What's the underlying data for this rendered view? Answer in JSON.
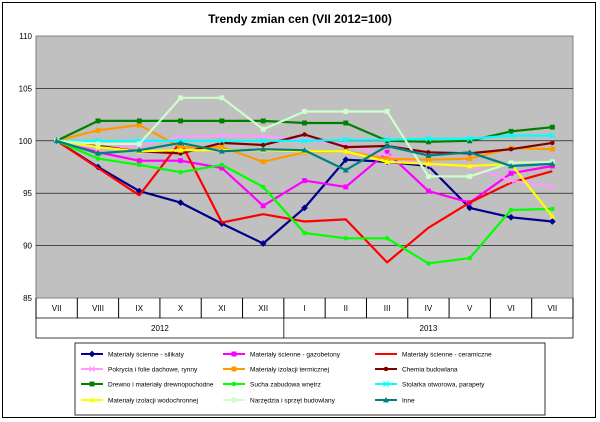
{
  "chart_data": {
    "type": "line",
    "title": "Trendy zmian cen (VII 2012=100)",
    "xlabel": "",
    "ylabel": "",
    "ylim": [
      85,
      110
    ],
    "yticks": [
      85,
      90,
      95,
      100,
      105,
      110
    ],
    "grid": true,
    "legend_position": "bottom",
    "categories": [
      "VII",
      "VIII",
      "IX",
      "X",
      "XI",
      "XII",
      "I",
      "II",
      "III",
      "IV",
      "V",
      "VI",
      "VII"
    ],
    "year_groups": [
      {
        "label": "2012",
        "span": 6
      },
      {
        "label": "2013",
        "span": 7
      }
    ],
    "series": [
      {
        "name": "Materiały ścienne - silikaty",
        "color": "#00008B",
        "marker": "diamond",
        "values": [
          100,
          97.5,
          95.2,
          94.1,
          92.1,
          90.2,
          93.6,
          98.2,
          98.0,
          97.6,
          93.6,
          92.7,
          92.3
        ]
      },
      {
        "name": "Materiały ścienne - gazobetony",
        "color": "#FF00FF",
        "marker": "square",
        "values": [
          100,
          98.9,
          98.1,
          98.1,
          97.4,
          93.8,
          96.2,
          95.6,
          98.9,
          95.2,
          94.1,
          96.9,
          97.6
        ]
      },
      {
        "name": "Materiały ścienne - ceramiczne",
        "color": "#FF0000",
        "marker": "none",
        "values": [
          100,
          97.4,
          94.8,
          99.9,
          92.2,
          93.0,
          92.3,
          92.5,
          88.4,
          91.7,
          94.1,
          96.0,
          97.1
        ]
      },
      {
        "name": "Pokrycia i folie dachowe, rynny",
        "color": "#FF99FF",
        "marker": "x",
        "values": [
          100,
          99.2,
          99.6,
          100.4,
          100.5,
          100.4,
          100.1,
          99.6,
          98.6,
          97.7,
          97.6,
          96.2,
          95.6
        ]
      },
      {
        "name": "Materiały izolacji termicznej",
        "color": "#FF9900",
        "marker": "square",
        "values": [
          100,
          101.0,
          101.5,
          99.4,
          99.4,
          98.0,
          98.9,
          99.0,
          98.3,
          98.2,
          98.3,
          99.3,
          99.2
        ]
      },
      {
        "name": "Chemia budowlana",
        "color": "#800000",
        "marker": "circle",
        "values": [
          100,
          99.5,
          99.0,
          98.8,
          99.8,
          99.6,
          100.6,
          99.4,
          99.5,
          98.9,
          98.8,
          99.2,
          99.8
        ]
      },
      {
        "name": "Drewno i materiały drewnopochodne",
        "color": "#008000",
        "marker": "square",
        "values": [
          100,
          101.9,
          101.9,
          101.9,
          101.9,
          101.9,
          101.7,
          101.7,
          100.0,
          99.9,
          100.0,
          100.9,
          101.3
        ]
      },
      {
        "name": "Sucha zabudowa wnętrz",
        "color": "#00FF00",
        "marker": "circle",
        "values": [
          100,
          98.3,
          97.7,
          97.0,
          97.7,
          95.6,
          91.2,
          90.7,
          90.7,
          88.3,
          88.8,
          93.4,
          93.5
        ]
      },
      {
        "name": "Stolarka otworowa, parapety",
        "color": "#00FFFF",
        "marker": "x",
        "values": [
          100,
          100.0,
          100.0,
          100.0,
          100.0,
          100.0,
          100.0,
          100.1,
          100.1,
          100.2,
          100.2,
          100.5,
          100.5
        ]
      },
      {
        "name": "Materiały izolacji wodochronnej",
        "color": "#FFFF00",
        "marker": "triangle",
        "values": [
          100,
          99.4,
          99.0,
          99.1,
          99.1,
          99.1,
          99.0,
          99.0,
          98.0,
          97.8,
          97.6,
          97.8,
          92.8
        ]
      },
      {
        "name": "Narzędzia i sprzęt budowlany",
        "color": "#CCFFCC",
        "marker": "square",
        "values": [
          100,
          99.7,
          99.7,
          104.1,
          104.1,
          101.1,
          102.8,
          102.8,
          102.8,
          96.6,
          96.6,
          97.9,
          98.0
        ]
      },
      {
        "name": "Inne",
        "color": "#008080",
        "marker": "triangle",
        "values": [
          100,
          98.8,
          99.1,
          99.8,
          99.0,
          99.2,
          99.1,
          97.2,
          99.5,
          98.6,
          98.9,
          97.6,
          97.8
        ]
      }
    ]
  }
}
